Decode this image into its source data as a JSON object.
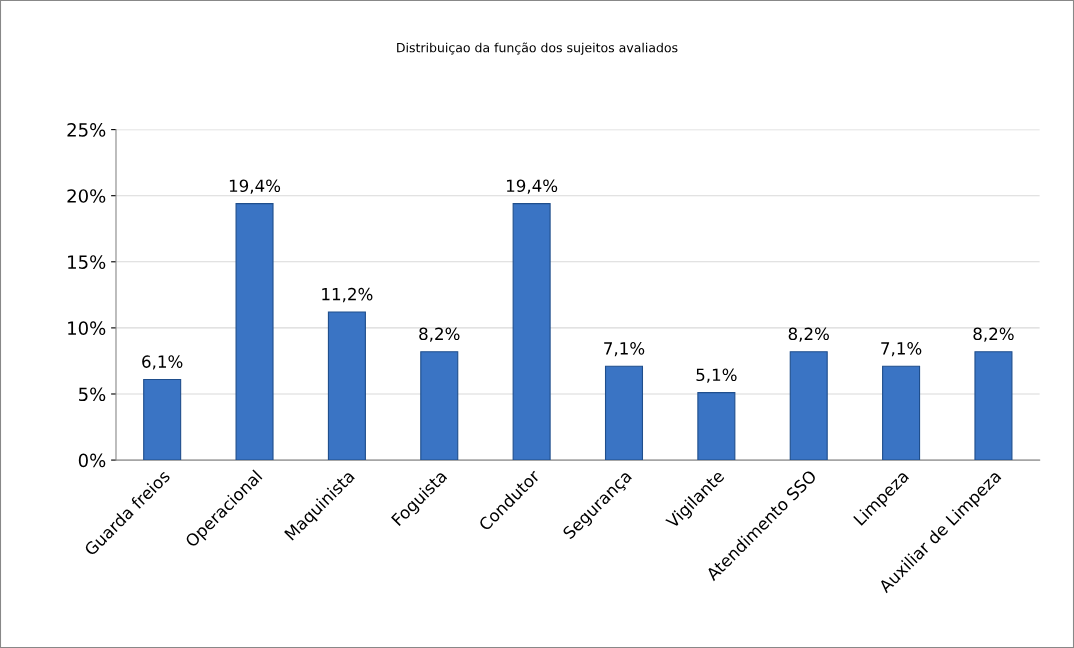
{
  "chart_data": {
    "type": "bar",
    "title": "Distribuiçao da função dos sujeitos avaliados",
    "categories": [
      "Guarda freios",
      "Operacional",
      "Maquinista",
      "Foguista",
      "Condutor",
      "Segurança",
      "Vigilante",
      "Atendimento SSO",
      "Limpeza",
      "Auxiliar de Limpeza"
    ],
    "values": [
      6.1,
      19.4,
      11.2,
      8.2,
      19.4,
      7.1,
      5.1,
      8.2,
      7.1,
      8.2
    ],
    "value_labels": [
      "6,1%",
      "19,4%",
      "11,2%",
      "8,2%",
      "19,4%",
      "7,1%",
      "5,1%",
      "8,2%",
      "7,1%",
      "8,2%"
    ],
    "color": "#3a74c4",
    "ylim": [
      0,
      25
    ],
    "yticks": [
      {
        "value": 0,
        "label": "0%"
      },
      {
        "value": 5,
        "label": "5%"
      },
      {
        "value": 10,
        "label": "10%"
      },
      {
        "value": 15,
        "label": "15%"
      },
      {
        "value": 20,
        "label": "20%"
      },
      {
        "value": 25,
        "label": "25%"
      }
    ],
    "grid": "y",
    "legend": false
  }
}
